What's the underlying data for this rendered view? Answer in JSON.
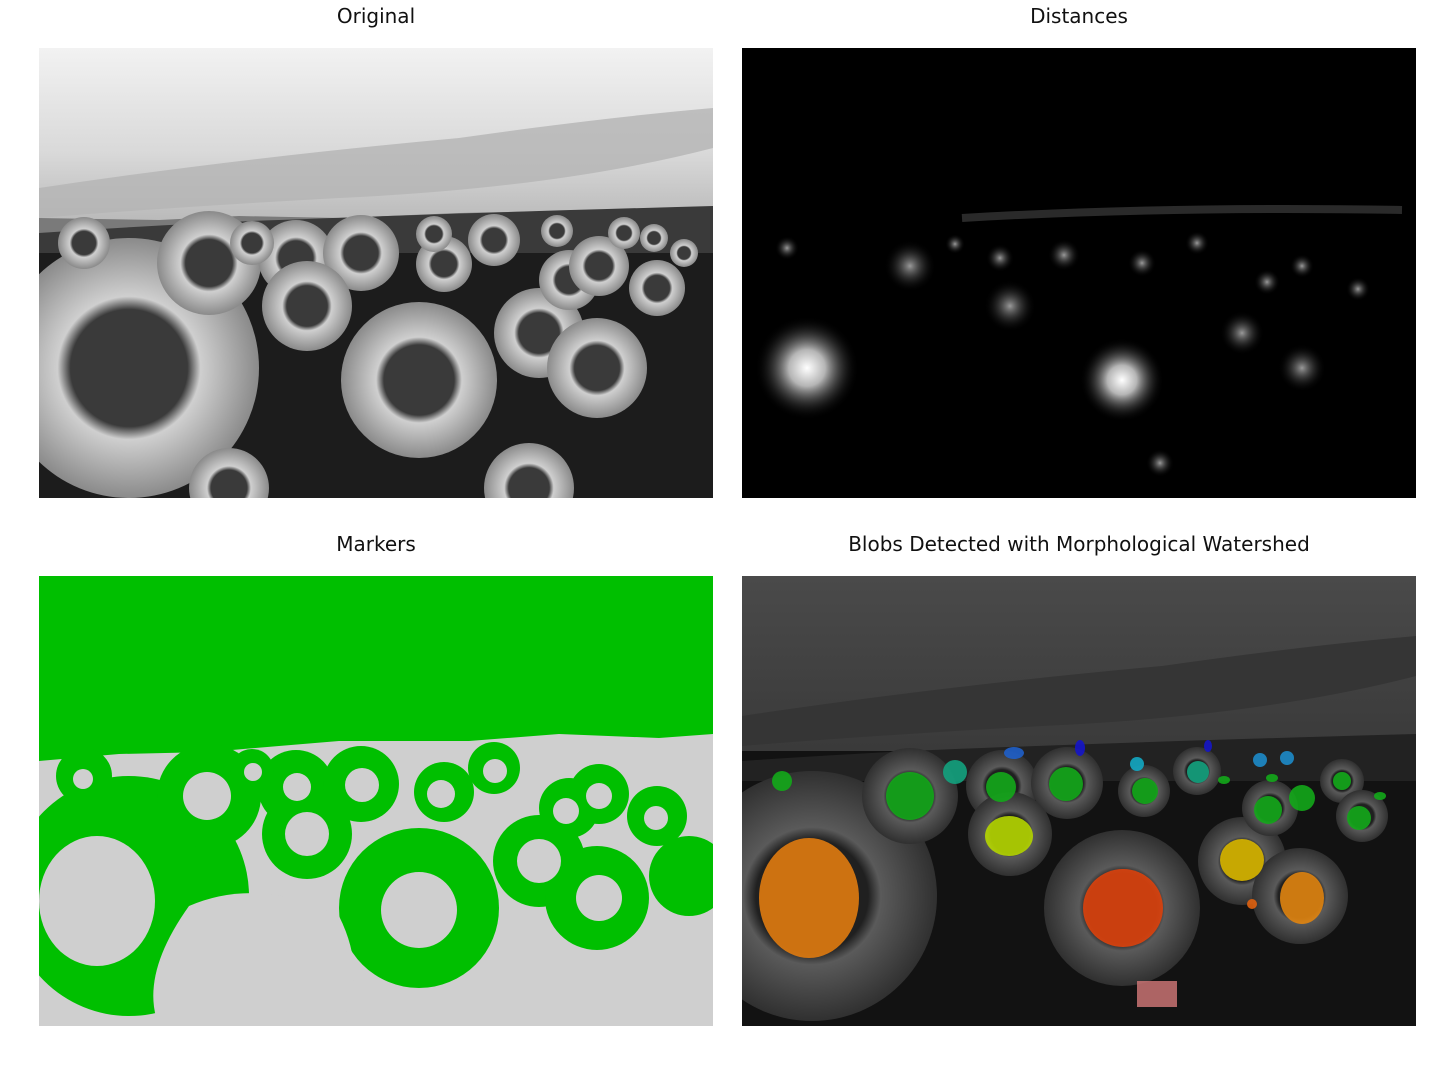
{
  "panels": {
    "original": {
      "title": "Original"
    },
    "distances": {
      "title": "Distances"
    },
    "markers": {
      "title": "Markers",
      "colors": {
        "foreground": "#00bf00",
        "background": "#cfcfcf"
      }
    },
    "blobs": {
      "title": "Blobs Detected with Morphological Watershed"
    }
  }
}
